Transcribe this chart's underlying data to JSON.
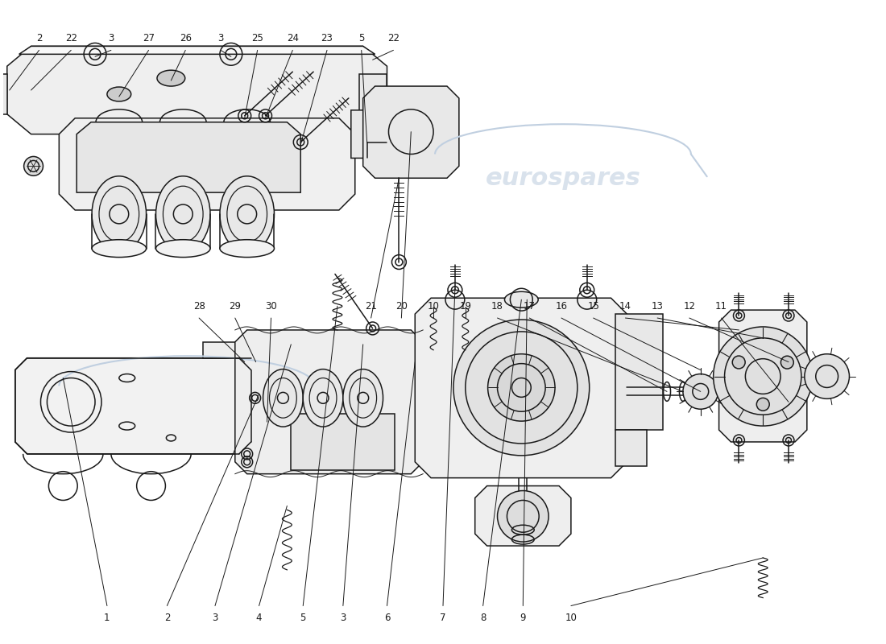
{
  "background_color": "#ffffff",
  "line_color": "#1a1a1a",
  "wm_color": "#c0cfe0",
  "wm_text": "eurospares",
  "fig_w": 11.0,
  "fig_h": 8.0,
  "dpi": 100,
  "upper_labels": [
    [
      "1",
      1.3,
      0.3
    ],
    [
      "2",
      2.05,
      0.3
    ],
    [
      "3",
      2.65,
      0.3
    ],
    [
      "4",
      3.2,
      0.3
    ],
    [
      "5",
      3.75,
      0.3
    ],
    [
      "3",
      4.25,
      0.3
    ],
    [
      "6",
      4.8,
      0.3
    ],
    [
      "7",
      5.5,
      0.3
    ],
    [
      "8",
      6.0,
      0.3
    ],
    [
      "9",
      6.5,
      0.3
    ],
    [
      "10",
      7.1,
      0.3
    ]
  ],
  "mid_labels": [
    [
      "28",
      2.45,
      4.2
    ],
    [
      "29",
      2.9,
      4.2
    ],
    [
      "30",
      3.35,
      4.2
    ],
    [
      "21",
      4.6,
      4.2
    ],
    [
      "20",
      4.98,
      4.2
    ],
    [
      "10",
      5.38,
      4.2
    ],
    [
      "19",
      5.78,
      4.2
    ],
    [
      "18",
      6.18,
      4.2
    ],
    [
      "17",
      6.58,
      4.2
    ],
    [
      "16",
      6.98,
      4.2
    ],
    [
      "15",
      7.38,
      4.2
    ],
    [
      "14",
      7.78,
      4.2
    ],
    [
      "13",
      8.18,
      4.2
    ],
    [
      "12",
      8.58,
      4.2
    ],
    [
      "11",
      8.98,
      4.2
    ]
  ],
  "lower_labels": [
    [
      "2",
      0.45,
      7.55
    ],
    [
      "22",
      0.85,
      7.55
    ],
    [
      "3",
      1.35,
      7.55
    ],
    [
      "27",
      1.82,
      7.55
    ],
    [
      "26",
      2.28,
      7.55
    ],
    [
      "3",
      2.72,
      7.55
    ],
    [
      "25",
      3.18,
      7.55
    ],
    [
      "24",
      3.62,
      7.55
    ],
    [
      "23",
      4.05,
      7.55
    ],
    [
      "5",
      4.48,
      7.55
    ],
    [
      "22",
      4.88,
      7.55
    ]
  ]
}
